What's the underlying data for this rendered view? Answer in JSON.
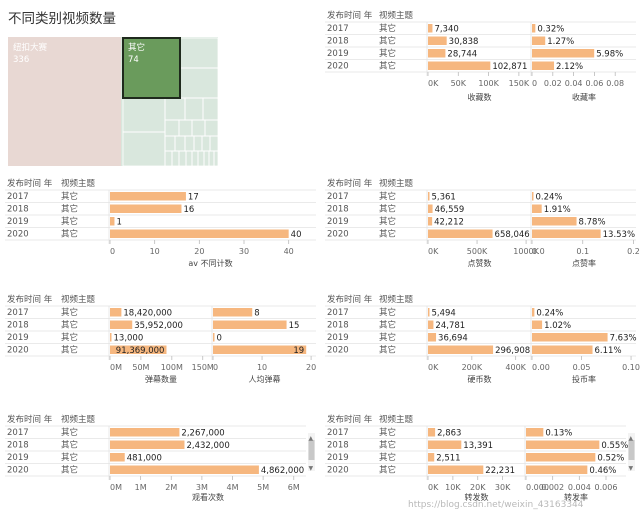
{
  "title": "不同类别视频数量",
  "treemap": {
    "items": [
      {
        "label": "纽扣大赛",
        "value": "336",
        "color": "#eed9d5",
        "text_color": "#ffffff"
      },
      {
        "label": "其它",
        "value": "74",
        "color": "#6a9b5c",
        "text_color": "#ffffff",
        "selected": true
      },
      {
        "label": "",
        "value": "",
        "color": "#d9e7dd"
      }
    ]
  },
  "colors": {
    "bar": "#f6b77f",
    "bar_stroke": "#e89a5a",
    "grid": "#e3e3e3",
    "treemap_fill": "#e8d8d3",
    "scroll": "#c8c8c8"
  },
  "watermark": "https://blog.csdn.net/weixin_43163344",
  "chart_data": [
    {
      "id": "fav",
      "type": "bar",
      "row_header": [
        "发布时间 年",
        "视频主题"
      ],
      "rows": [
        [
          "2017",
          "其它"
        ],
        [
          "2018",
          "其它"
        ],
        [
          "2019",
          "其它"
        ],
        [
          "2020",
          "其它"
        ]
      ],
      "measures": [
        {
          "name": "收藏数",
          "values": [
            7340,
            30838,
            28744,
            102871
          ],
          "labels": [
            "7,340",
            "30,838",
            "28,744",
            "102,871"
          ],
          "xlim": [
            0,
            170000
          ],
          "ticks": [
            "0K",
            "50K",
            "100K",
            "150K"
          ],
          "tick_values": [
            0,
            50000,
            100000,
            150000
          ]
        },
        {
          "name": "收藏率",
          "values": [
            0.0032,
            0.0127,
            0.0598,
            0.0212
          ],
          "labels": [
            "0.32%",
            "1.27%",
            "5.98%",
            "2.12%"
          ],
          "xlim": [
            0,
            0.1
          ],
          "ticks": [
            "0",
            "0.02",
            "0.04",
            "0.06",
            "0.08"
          ],
          "tick_values": [
            0,
            0.02,
            0.04,
            0.06,
            0.08
          ]
        }
      ]
    },
    {
      "id": "av",
      "type": "bar",
      "row_header": [
        "发布时间 年",
        "视频主题"
      ],
      "rows": [
        [
          "2017",
          "其它"
        ],
        [
          "2018",
          "其它"
        ],
        [
          "2019",
          "其它"
        ],
        [
          "2020",
          "其它"
        ]
      ],
      "measures": [
        {
          "name": "av 不同计数",
          "values": [
            17,
            16,
            1,
            40
          ],
          "labels": [
            "17",
            "16",
            "1",
            "40"
          ],
          "xlim": [
            0,
            45
          ],
          "ticks": [
            "0",
            "10",
            "20",
            "30",
            "40"
          ],
          "tick_values": [
            0,
            10,
            20,
            30,
            40
          ]
        }
      ]
    },
    {
      "id": "like",
      "type": "bar",
      "row_header": [
        "发布时间 年",
        "视频主题"
      ],
      "rows": [
        [
          "2017",
          "其它"
        ],
        [
          "2018",
          "其它"
        ],
        [
          "2019",
          "其它"
        ],
        [
          "2020",
          "其它"
        ]
      ],
      "measures": [
        {
          "name": "点赞数",
          "values": [
            5361,
            46559,
            42212,
            658046
          ],
          "labels": [
            "5,361",
            "46,559",
            "42,212",
            "658,046"
          ],
          "xlim": [
            0,
            1050000
          ],
          "ticks": [
            "0K",
            "500K",
            "1000K"
          ],
          "tick_values": [
            0,
            500000,
            1000000
          ]
        },
        {
          "name": "点赞率",
          "values": [
            0.0024,
            0.0191,
            0.0878,
            0.1353
          ],
          "labels": [
            "0.24%",
            "1.91%",
            "8.78%",
            "13.53%"
          ],
          "xlim": [
            0,
            0.205
          ],
          "ticks": [
            "0.0",
            "0.1",
            "0.2"
          ],
          "tick_values": [
            0,
            0.1,
            0.2
          ]
        }
      ]
    },
    {
      "id": "danmu",
      "type": "bar",
      "row_header": [
        "发布时间 年",
        "视频主题"
      ],
      "rows": [
        [
          "2017",
          "其它"
        ],
        [
          "2018",
          "其它"
        ],
        [
          "2019",
          "其它"
        ],
        [
          "2020",
          "其它"
        ]
      ],
      "measures": [
        {
          "name": "弹幕数量",
          "values": [
            18420000,
            35952000,
            13000,
            91369000
          ],
          "labels": [
            "18,420,000",
            "35,952,000",
            "13,000",
            "91,369,000"
          ],
          "xlim": [
            0,
            165000000
          ],
          "ticks": [
            "0M",
            "50M",
            "100M",
            "150M"
          ],
          "tick_values": [
            0,
            50000000,
            100000000,
            150000000
          ]
        },
        {
          "name": "人均弹幕",
          "values": [
            8,
            15,
            0,
            19
          ],
          "labels": [
            "8",
            "15",
            "0",
            "19"
          ],
          "xlim": [
            0,
            21
          ],
          "ticks": [
            "0",
            "10",
            "20"
          ],
          "tick_values": [
            0,
            10,
            20
          ]
        }
      ]
    },
    {
      "id": "coin",
      "type": "bar",
      "row_header": [
        "发布时间 年",
        "视频主题"
      ],
      "rows": [
        [
          "2017",
          "其它"
        ],
        [
          "2018",
          "其它"
        ],
        [
          "2019",
          "其它"
        ],
        [
          "2020",
          "其它"
        ]
      ],
      "measures": [
        {
          "name": "硬币数",
          "values": [
            5494,
            24781,
            36694,
            296908
          ],
          "labels": [
            "5,494",
            "24,781",
            "36,694",
            "296,908"
          ],
          "xlim": [
            0,
            470000
          ],
          "ticks": [
            "0K",
            "200K",
            "400K"
          ],
          "tick_values": [
            0,
            200000,
            400000
          ]
        },
        {
          "name": "投币率",
          "values": [
            0.0024,
            0.0102,
            0.0763,
            0.0611
          ],
          "labels": [
            "0.24%",
            "1.02%",
            "7.63%",
            "6.11%"
          ],
          "xlim": [
            0,
            0.105
          ],
          "ticks": [
            "0.00",
            "0.05",
            "0.10"
          ],
          "tick_values": [
            0,
            0.05,
            0.1
          ]
        }
      ]
    },
    {
      "id": "view",
      "type": "bar",
      "row_header": [
        "发布时间 年",
        "视频主题"
      ],
      "rows": [
        [
          "2017",
          "其它"
        ],
        [
          "2018",
          "其它"
        ],
        [
          "2019",
          "其它"
        ],
        [
          "2020",
          "其它"
        ]
      ],
      "measures": [
        {
          "name": "观看次数",
          "values": [
            2267000,
            2432000,
            481000,
            4862000
          ],
          "labels": [
            "2,267,000",
            "2,432,000",
            "481,000",
            "4,862,000"
          ],
          "xlim": [
            0,
            6400000
          ],
          "ticks": [
            "0M",
            "1M",
            "2M",
            "3M",
            "4M",
            "5M",
            "6M"
          ],
          "tick_values": [
            0,
            1000000,
            2000000,
            3000000,
            4000000,
            5000000,
            6000000
          ]
        }
      ]
    },
    {
      "id": "share",
      "type": "bar",
      "row_header": [
        "发布时间 年",
        "视频主题"
      ],
      "rows": [
        [
          "2017",
          "其它"
        ],
        [
          "2018",
          "其它"
        ],
        [
          "2019",
          "其它"
        ],
        [
          "2020",
          "其它"
        ]
      ],
      "measures": [
        {
          "name": "转发数",
          "values": [
            2863,
            13391,
            2511,
            22231
          ],
          "labels": [
            "2,863",
            "13,391",
            "2,511",
            "22,231"
          ],
          "xlim": [
            0,
            39000
          ],
          "ticks": [
            "0K",
            "10K",
            "20K",
            "30K"
          ],
          "tick_values": [
            0,
            10000,
            20000,
            30000
          ]
        },
        {
          "name": "转发率",
          "values": [
            0.0013,
            0.0055,
            0.0052,
            0.0046
          ],
          "labels": [
            "0.13%",
            "0.55%",
            "0.52%",
            "0.46%"
          ],
          "xlim": [
            0,
            0.0075
          ],
          "ticks": [
            "0.000",
            "0.002",
            "0.004",
            "0.006"
          ],
          "tick_values": [
            0,
            0.002,
            0.004,
            0.006
          ]
        }
      ]
    }
  ]
}
